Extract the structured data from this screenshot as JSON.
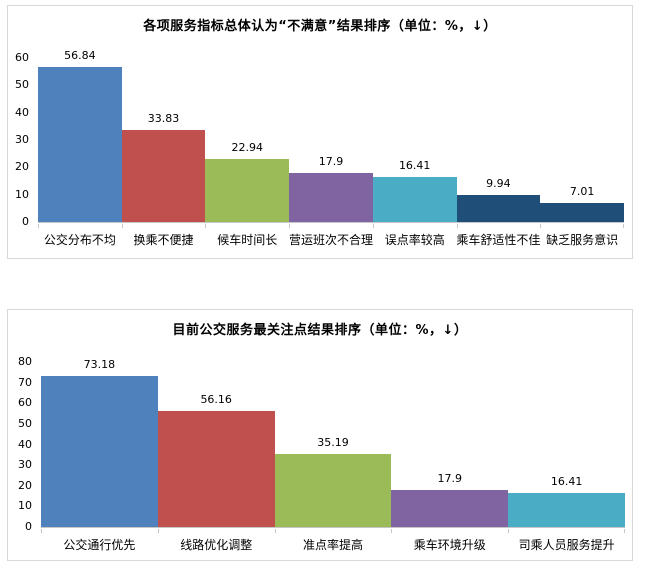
{
  "page": {
    "background_color": "#ffffff",
    "panel_border_color": "#d9d9d9",
    "axis_line_color": "#c6c6c6"
  },
  "palette": {
    "blue": "#4F81BD",
    "red": "#C0504D",
    "green": "#9BBB59",
    "purple": "#8064A2",
    "teal": "#4BACC6",
    "navy": "#1F4E79"
  },
  "chart_data": [
    {
      "type": "bar",
      "title": "各项服务指标总体认为“不满意”结果排序（单位：%，↓）",
      "categories": [
        "公交分布不均",
        "换乘不便捷",
        "候车时间长",
        "营运班次不合理",
        "误点率较高",
        "乘车舒适性不佳",
        "缺乏服务意识"
      ],
      "values": [
        56.84,
        33.83,
        22.94,
        17.9,
        16.41,
        9.94,
        7.01
      ],
      "value_labels": [
        "56.84",
        "33.83",
        "22.94",
        "17.9",
        "16.41",
        "9.94",
        "7.01"
      ],
      "bar_colors": [
        "#4F81BD",
        "#C0504D",
        "#9BBB59",
        "#8064A2",
        "#4BACC6",
        "#1F4E79",
        "#1F4E79"
      ],
      "xlabel": "",
      "ylabel": "",
      "ylim": [
        0,
        60
      ],
      "yticks": [
        0,
        10,
        20,
        30,
        40,
        50,
        60
      ],
      "grid": false,
      "legend": false,
      "bar_gap": 0
    },
    {
      "type": "bar",
      "title": "目前公交服务最关注点结果排序（单位：%，↓）",
      "categories": [
        "公交通行优先",
        "线路优化调整",
        "准点率提高",
        "乘车环境升级",
        "司乘人员服务提升"
      ],
      "values": [
        73.18,
        56.16,
        35.19,
        17.9,
        16.41
      ],
      "value_labels": [
        "73.18",
        "56.16",
        "35.19",
        "17.9",
        "16.41"
      ],
      "bar_colors": [
        "#4F81BD",
        "#C0504D",
        "#9BBB59",
        "#8064A2",
        "#4BACC6"
      ],
      "xlabel": "",
      "ylabel": "",
      "ylim": [
        0,
        80
      ],
      "yticks": [
        0,
        10,
        20,
        30,
        40,
        50,
        60,
        70,
        80
      ],
      "grid": false,
      "legend": false,
      "bar_gap": 0
    }
  ]
}
